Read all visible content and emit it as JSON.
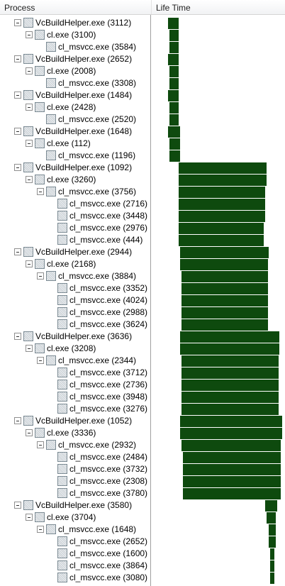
{
  "columns": {
    "process": "Process",
    "lifetime": "Life Time"
  },
  "rows": [
    {
      "level": 0,
      "label": "VcBuildHelper.exe (3112)",
      "expander": true,
      "life": [
        0.13,
        0.21
      ]
    },
    {
      "level": 1,
      "label": "cl.exe (3100)",
      "expander": true,
      "life": [
        0.14,
        0.21
      ]
    },
    {
      "level": 2,
      "label": "cl_msvcc.exe (3584)",
      "expander": false,
      "life": [
        0.14,
        0.21
      ]
    },
    {
      "level": 0,
      "label": "VcBuildHelper.exe (2652)",
      "expander": true,
      "life": [
        0.13,
        0.21
      ]
    },
    {
      "level": 1,
      "label": "cl.exe (2008)",
      "expander": true,
      "life": [
        0.14,
        0.21
      ]
    },
    {
      "level": 2,
      "label": "cl_msvcc.exe (3308)",
      "expander": false,
      "life": [
        0.14,
        0.21
      ]
    },
    {
      "level": 0,
      "label": "VcBuildHelper.exe (1484)",
      "expander": true,
      "life": [
        0.13,
        0.21
      ]
    },
    {
      "level": 1,
      "label": "cl.exe (2428)",
      "expander": true,
      "life": [
        0.14,
        0.21
      ]
    },
    {
      "level": 2,
      "label": "cl_msvcc.exe (2520)",
      "expander": false,
      "life": [
        0.14,
        0.21
      ]
    },
    {
      "level": 0,
      "label": "VcBuildHelper.exe (1648)",
      "expander": true,
      "life": [
        0.13,
        0.22
      ]
    },
    {
      "level": 1,
      "label": "cl.exe (112)",
      "expander": true,
      "life": [
        0.14,
        0.22
      ]
    },
    {
      "level": 2,
      "label": "cl_msvcc.exe (1196)",
      "expander": false,
      "life": [
        0.14,
        0.22
      ]
    },
    {
      "level": 0,
      "label": "VcBuildHelper.exe (1092)",
      "expander": true,
      "life": [
        0.21,
        0.87
      ]
    },
    {
      "level": 1,
      "label": "cl.exe (3260)",
      "expander": true,
      "life": [
        0.21,
        0.87
      ]
    },
    {
      "level": 2,
      "label": "cl_msvcc.exe (3756)",
      "expander": true,
      "life": [
        0.21,
        0.86
      ]
    },
    {
      "level": 3,
      "label": "cl_msvcc.exe (2716)",
      "expander": false,
      "life": [
        0.21,
        0.86
      ]
    },
    {
      "level": 3,
      "label": "cl_msvcc.exe (3448)",
      "expander": false,
      "life": [
        0.21,
        0.86
      ]
    },
    {
      "level": 3,
      "label": "cl_msvcc.exe (2976)",
      "expander": false,
      "life": [
        0.21,
        0.85
      ]
    },
    {
      "level": 3,
      "label": "cl_msvcc.exe (444)",
      "expander": false,
      "life": [
        0.21,
        0.85
      ]
    },
    {
      "level": 0,
      "label": "VcBuildHelper.exe (2944)",
      "expander": true,
      "life": [
        0.22,
        0.89
      ]
    },
    {
      "level": 1,
      "label": "cl.exe (2168)",
      "expander": true,
      "life": [
        0.22,
        0.88
      ]
    },
    {
      "level": 2,
      "label": "cl_msvcc.exe (3884)",
      "expander": true,
      "life": [
        0.23,
        0.88
      ]
    },
    {
      "level": 3,
      "label": "cl_msvcc.exe (3352)",
      "expander": false,
      "life": [
        0.23,
        0.88
      ]
    },
    {
      "level": 3,
      "label": "cl_msvcc.exe (4024)",
      "expander": false,
      "life": [
        0.23,
        0.88
      ]
    },
    {
      "level": 3,
      "label": "cl_msvcc.exe (2988)",
      "expander": false,
      "life": [
        0.23,
        0.88
      ]
    },
    {
      "level": 3,
      "label": "cl_msvcc.exe (3624)",
      "expander": false,
      "life": [
        0.23,
        0.88
      ]
    },
    {
      "level": 0,
      "label": "VcBuildHelper.exe (3636)",
      "expander": true,
      "life": [
        0.22,
        0.97
      ]
    },
    {
      "level": 1,
      "label": "cl.exe (3208)",
      "expander": true,
      "life": [
        0.22,
        0.97
      ]
    },
    {
      "level": 2,
      "label": "cl_msvcc.exe (2344)",
      "expander": true,
      "life": [
        0.23,
        0.96
      ]
    },
    {
      "level": 3,
      "label": "cl_msvcc.exe (3712)",
      "expander": false,
      "life": [
        0.23,
        0.96
      ]
    },
    {
      "level": 3,
      "label": "cl_msvcc.exe (2736)",
      "expander": false,
      "life": [
        0.23,
        0.96
      ]
    },
    {
      "level": 3,
      "label": "cl_msvcc.exe (3948)",
      "expander": false,
      "life": [
        0.23,
        0.96
      ]
    },
    {
      "level": 3,
      "label": "cl_msvcc.exe (3276)",
      "expander": false,
      "life": [
        0.23,
        0.96
      ]
    },
    {
      "level": 0,
      "label": "VcBuildHelper.exe (1052)",
      "expander": true,
      "life": [
        0.22,
        0.99
      ]
    },
    {
      "level": 1,
      "label": "cl.exe (3336)",
      "expander": true,
      "life": [
        0.22,
        0.99
      ]
    },
    {
      "level": 2,
      "label": "cl_msvcc.exe (2932)",
      "expander": true,
      "life": [
        0.23,
        0.98
      ]
    },
    {
      "level": 3,
      "label": "cl_msvcc.exe (2484)",
      "expander": false,
      "life": [
        0.24,
        0.98
      ]
    },
    {
      "level": 3,
      "label": "cl_msvcc.exe (3732)",
      "expander": false,
      "life": [
        0.24,
        0.98
      ]
    },
    {
      "level": 3,
      "label": "cl_msvcc.exe (2308)",
      "expander": false,
      "life": [
        0.24,
        0.98
      ]
    },
    {
      "level": 3,
      "label": "cl_msvcc.exe (3780)",
      "expander": false,
      "life": [
        0.24,
        0.98
      ]
    },
    {
      "level": 0,
      "label": "VcBuildHelper.exe (3580)",
      "expander": true,
      "life": [
        0.86,
        0.95
      ]
    },
    {
      "level": 1,
      "label": "cl.exe (3704)",
      "expander": true,
      "life": [
        0.87,
        0.94
      ]
    },
    {
      "level": 2,
      "label": "cl_msvcc.exe (1648)",
      "expander": true,
      "life": [
        0.89,
        0.94
      ]
    },
    {
      "level": 3,
      "label": "cl_msvcc.exe (2652)",
      "expander": false,
      "life": [
        0.89,
        0.94
      ]
    },
    {
      "level": 3,
      "label": "cl_msvcc.exe (1600)",
      "expander": false,
      "life": [
        0.9,
        0.93
      ]
    },
    {
      "level": 3,
      "label": "cl_msvcc.exe (3864)",
      "expander": false,
      "life": [
        0.9,
        0.93
      ]
    },
    {
      "level": 3,
      "label": "cl_msvcc.exe (3080)",
      "expander": false,
      "life": [
        0.9,
        0.93
      ]
    }
  ],
  "colors": {
    "bar": "#0e4a0e",
    "divider": "#a0a0a0"
  },
  "icons": {
    "expander": "collapse-minus-icon",
    "process": "process-icon"
  }
}
